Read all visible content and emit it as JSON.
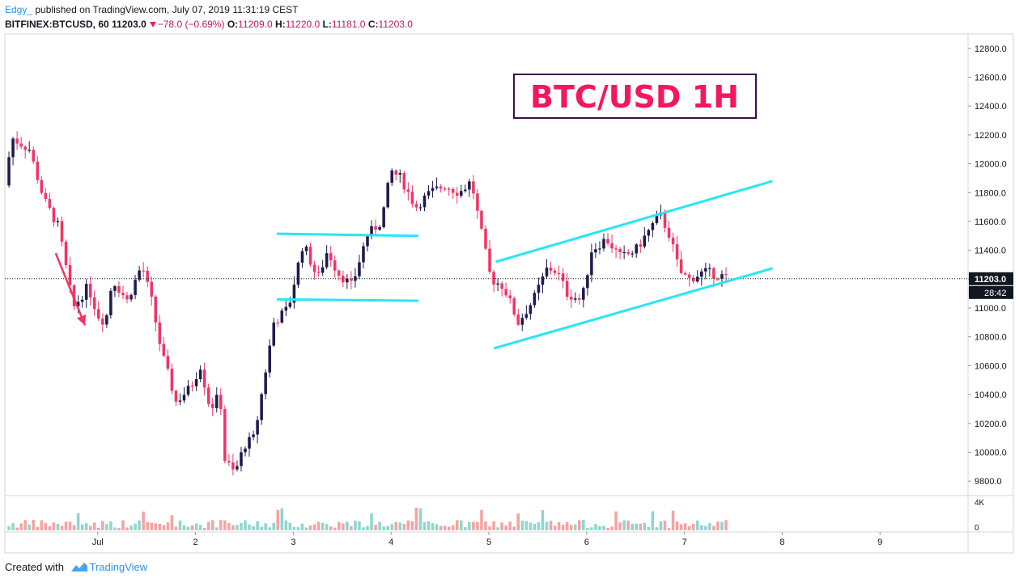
{
  "header": {
    "author": "Edgy_",
    "published_text": "published on TradingView.com, July 07, 2019 11:31:19 CEST",
    "symbol": "BITFINEX:BTCUSD, 60",
    "last": "11203.0",
    "change": "−78.0 (−0.69%)",
    "o_label": "O:",
    "o_value": "11209.0",
    "h_label": "H:",
    "h_value": "11220.0",
    "l_label": "L:",
    "l_value": "11181.0",
    "c_label": "C:",
    "c_value": "11203.0"
  },
  "footer": {
    "created_with": "Created with",
    "brand": "TradingView"
  },
  "colors": {
    "up": "#1e1b4b",
    "down": "#f23566",
    "trendline": "#26e7f2",
    "arrow": "#f23566",
    "title_text": "#f5175e",
    "title_border": "#3c0f4a",
    "vol_up": "#8fd6cf",
    "vol_down": "#f5a3a3"
  },
  "chart_data": {
    "type": "candlestick",
    "title": "BTC/USD 1H",
    "timeframe": "60",
    "ylim": [
      9700,
      12900
    ],
    "y_ticks": [
      "12800.0",
      "12600.0",
      "12400.0",
      "12200.0",
      "12000.0",
      "11800.0",
      "11600.0",
      "11400.0",
      "11200.0",
      "11000.0",
      "10800.0",
      "10600.0",
      "10400.0",
      "10200.0",
      "10000.0",
      "9800.0"
    ],
    "x_ticks": [
      {
        "label": "Jul",
        "day": 1
      },
      {
        "label": "2",
        "day": 2
      },
      {
        "label": "3",
        "day": 3
      },
      {
        "label": "4",
        "day": 4
      },
      {
        "label": "5",
        "day": 5
      },
      {
        "label": "6",
        "day": 6
      },
      {
        "label": "7",
        "day": 7
      },
      {
        "label": "8",
        "day": 8
      },
      {
        "label": "9",
        "day": 9
      }
    ],
    "xlim_days": [
      0.05,
      9.9
    ],
    "last_price": "11203.0",
    "countdown": "28:42",
    "volume_ticks": [
      "4K",
      "0"
    ],
    "volume_max": 4000,
    "price_path": [
      [
        0.05,
        11850
      ],
      [
        0.12,
        12180
      ],
      [
        0.3,
        12100
      ],
      [
        0.45,
        11750
      ],
      [
        0.6,
        11560
      ],
      [
        0.75,
        11000
      ],
      [
        0.9,
        11150
      ],
      [
        1.0,
        10950
      ],
      [
        1.08,
        10900
      ],
      [
        1.15,
        11200
      ],
      [
        1.3,
        11050
      ],
      [
        1.45,
        11300
      ],
      [
        1.55,
        11050
      ],
      [
        1.65,
        10700
      ],
      [
        1.8,
        10350
      ],
      [
        1.95,
        10450
      ],
      [
        2.05,
        10600
      ],
      [
        2.15,
        10300
      ],
      [
        2.25,
        10400
      ],
      [
        2.3,
        9950
      ],
      [
        2.4,
        9850
      ],
      [
        2.5,
        10050
      ],
      [
        2.6,
        10100
      ],
      [
        2.7,
        10500
      ],
      [
        2.8,
        10900
      ],
      [
        2.95,
        11000
      ],
      [
        3.1,
        11450
      ],
      [
        3.25,
        11200
      ],
      [
        3.35,
        11400
      ],
      [
        3.45,
        11250
      ],
      [
        3.6,
        11150
      ],
      [
        3.75,
        11500
      ],
      [
        3.9,
        11600
      ],
      [
        4.0,
        11950
      ],
      [
        4.1,
        11900
      ],
      [
        4.25,
        11700
      ],
      [
        4.4,
        11800
      ],
      [
        4.55,
        11850
      ],
      [
        4.7,
        11800
      ],
      [
        4.82,
        11880
      ],
      [
        4.9,
        11600
      ],
      [
        5.02,
        11200
      ],
      [
        5.15,
        11150
      ],
      [
        5.3,
        10900
      ],
      [
        5.45,
        11050
      ],
      [
        5.6,
        11280
      ],
      [
        5.7,
        11250
      ],
      [
        5.8,
        11100
      ],
      [
        5.95,
        11050
      ],
      [
        6.05,
        11400
      ],
      [
        6.2,
        11480
      ],
      [
        6.35,
        11350
      ],
      [
        6.5,
        11400
      ],
      [
        6.65,
        11550
      ],
      [
        6.75,
        11650
      ],
      [
        6.85,
        11500
      ],
      [
        6.95,
        11250
      ],
      [
        7.05,
        11200
      ],
      [
        7.2,
        11250
      ],
      [
        7.35,
        11230
      ],
      [
        7.45,
        11203
      ]
    ],
    "drawings": {
      "trendlines": [
        {
          "name": "flag-resistance",
          "from": [
            2.83,
            11515
          ],
          "to": [
            4.28,
            11500
          ]
        },
        {
          "name": "flag-support",
          "from": [
            2.83,
            11060
          ],
          "to": [
            4.28,
            11050
          ]
        },
        {
          "name": "channel-resistance",
          "from": [
            5.07,
            11320
          ],
          "to": [
            7.9,
            11880
          ]
        },
        {
          "name": "channel-support",
          "from": [
            5.05,
            10720
          ],
          "to": [
            7.9,
            11275
          ]
        }
      ],
      "arrow": {
        "from": [
          0.57,
          11380
        ],
        "to": [
          0.87,
          10880
        ]
      }
    }
  }
}
